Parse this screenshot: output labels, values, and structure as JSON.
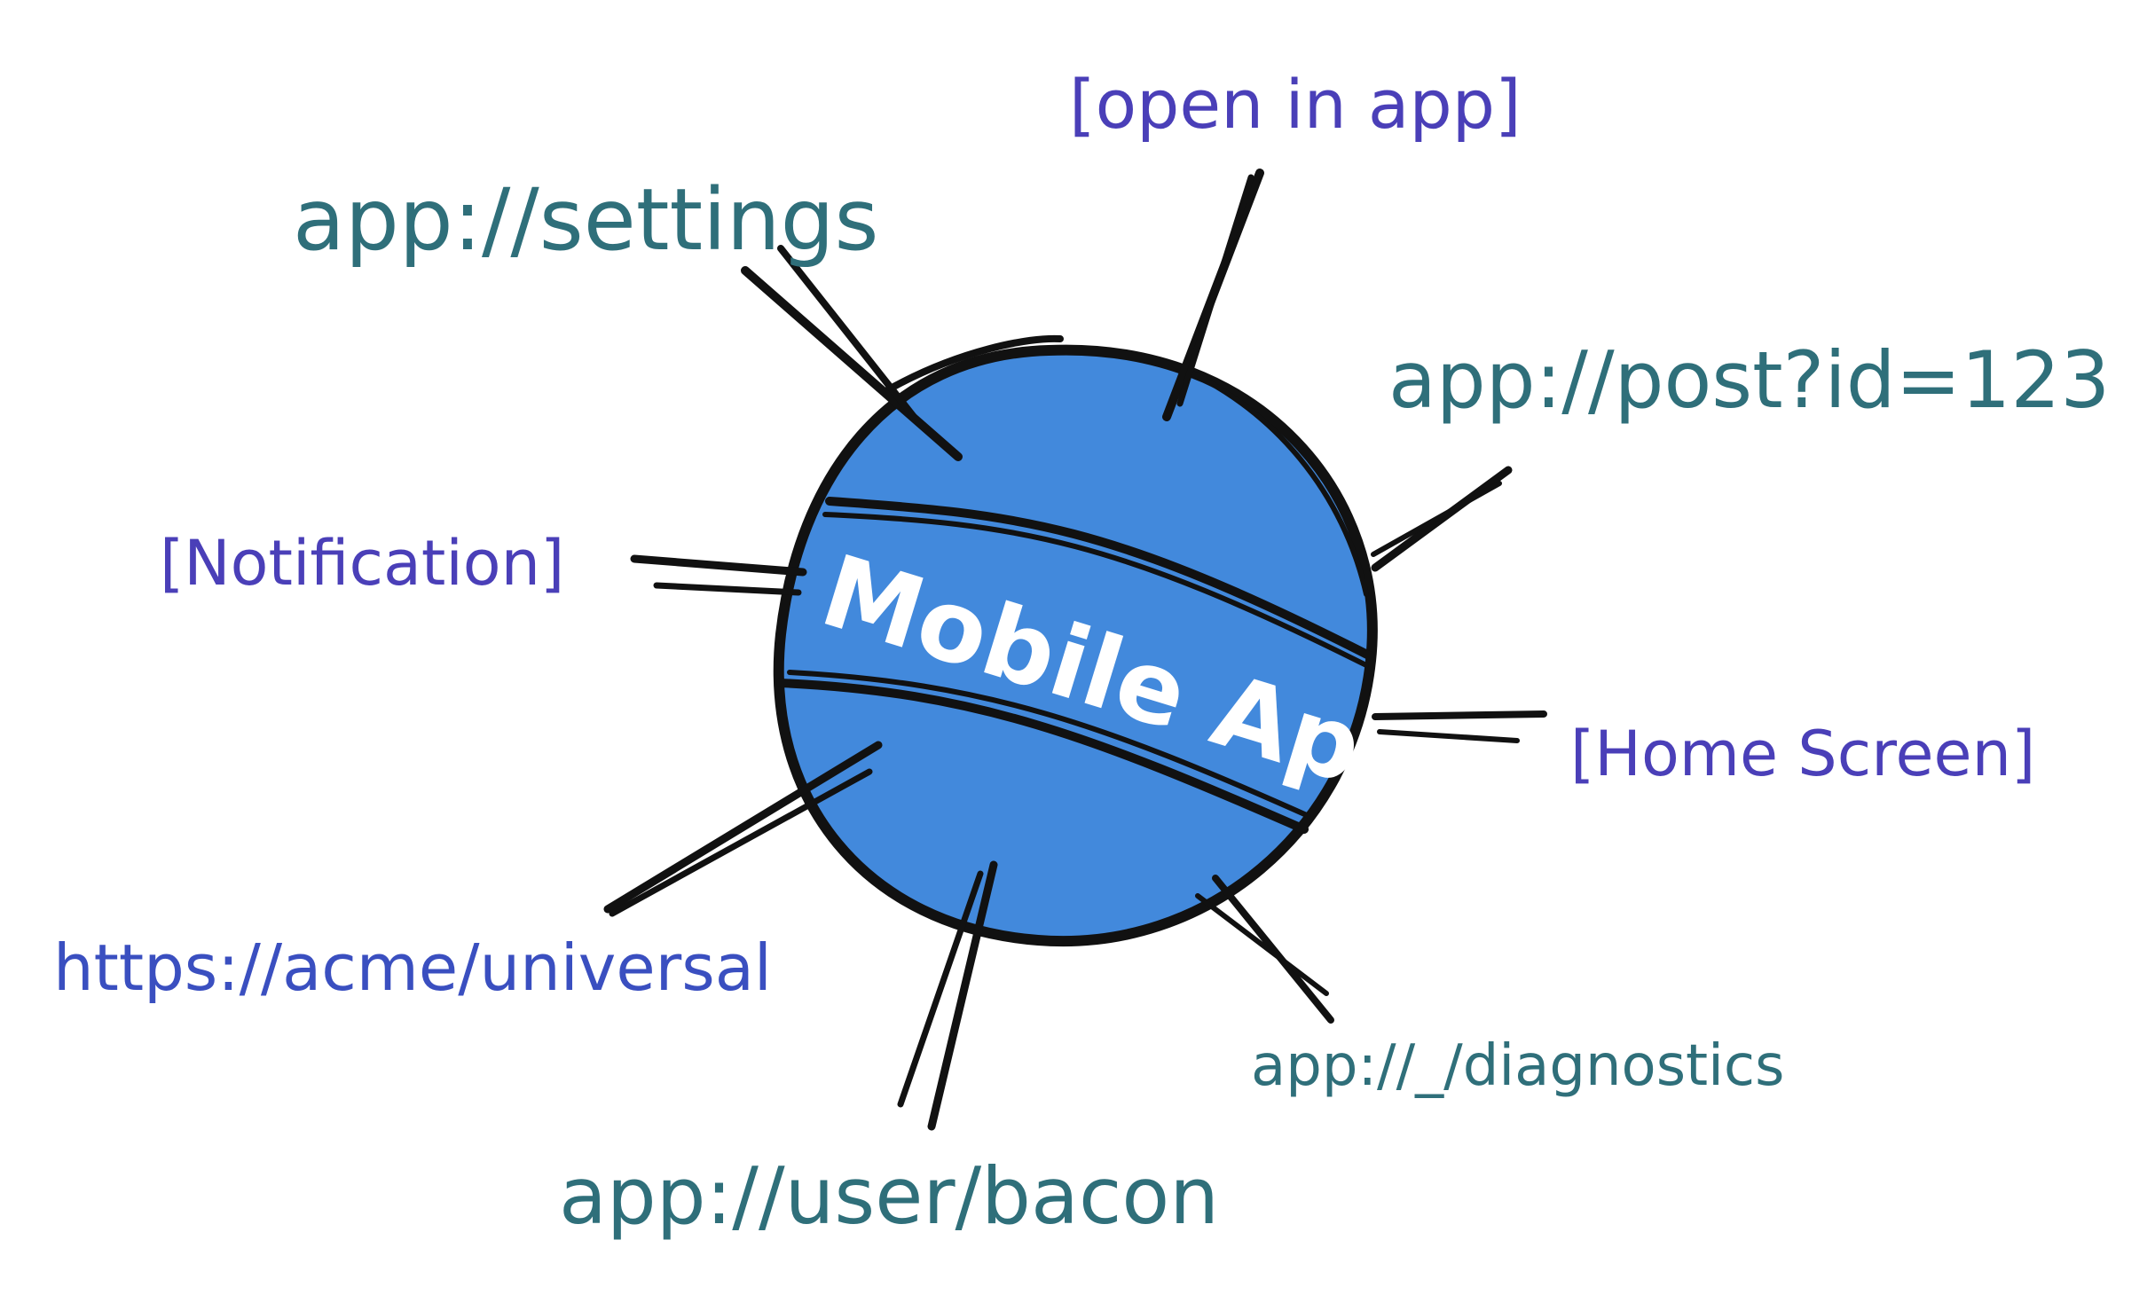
{
  "diagram": {
    "center": {
      "label": "Mobile App",
      "fill_color": "#4289dc",
      "stroke_color": "#111111"
    },
    "entry_points": [
      {
        "id": "settings",
        "label": "app://settings",
        "kind": "deep-link"
      },
      {
        "id": "open",
        "label": "[open in app]",
        "kind": "trigger"
      },
      {
        "id": "post",
        "label": "app://post?id=123",
        "kind": "deep-link"
      },
      {
        "id": "notify",
        "label": "[Notification]",
        "kind": "trigger"
      },
      {
        "id": "home",
        "label": "[Home Screen]",
        "kind": "trigger"
      },
      {
        "id": "universal",
        "label": "https://acme/universal",
        "kind": "universal-link"
      },
      {
        "id": "diag",
        "label": "app://_/diagnostics",
        "kind": "deep-link"
      },
      {
        "id": "bacon",
        "label": "app://user/bacon",
        "kind": "deep-link"
      }
    ],
    "colors": {
      "deep_link_text": "#2f6f7a",
      "trigger_text": "#4a3fb8",
      "universal_link_text": "#3a4fc0",
      "connector": "#111111"
    }
  }
}
